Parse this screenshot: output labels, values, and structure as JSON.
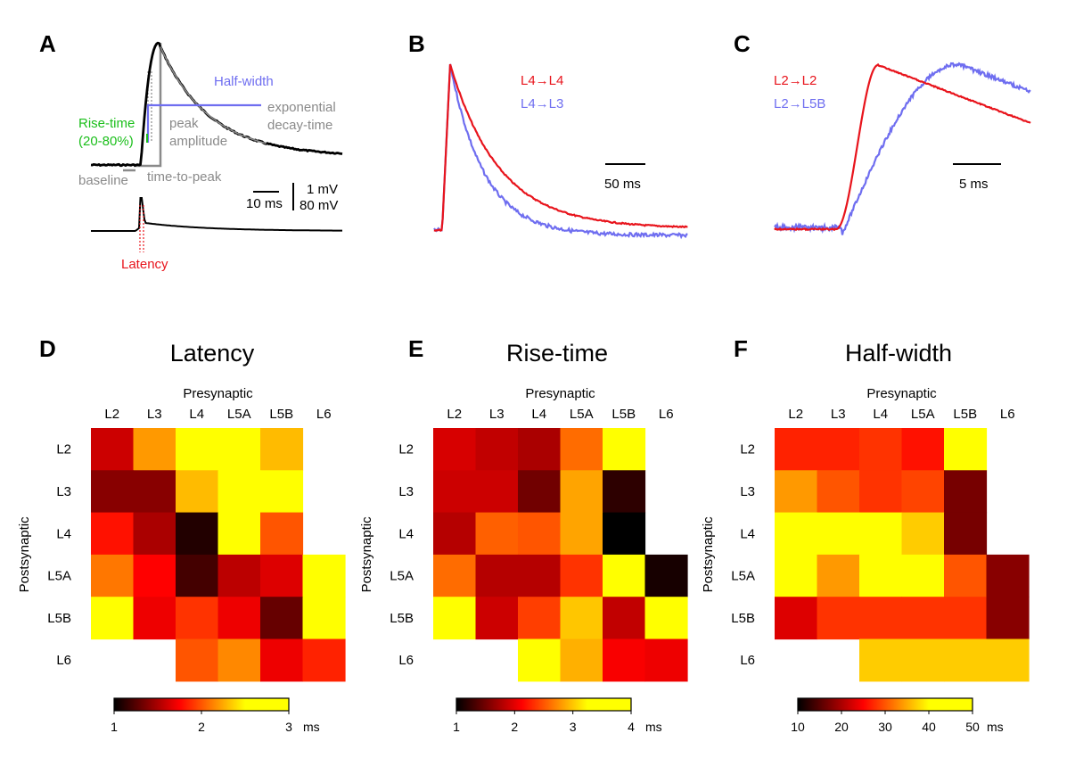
{
  "panels": {
    "A": {
      "label": "A",
      "annotations": {
        "half_width": "Half-width",
        "rise_time_line1": "Rise-time",
        "rise_time_line2": "(20-80%)",
        "peak_line1": "peak",
        "peak_line2": "amplitude",
        "decay_line1": "exponential",
        "decay_line2": "decay-time",
        "baseline": "baseline",
        "time_to_peak": "time-to-peak",
        "latency": "Latency"
      },
      "scale": {
        "time": "10 ms",
        "v1": "1 mV",
        "v2": "80 mV"
      }
    },
    "B": {
      "label": "B",
      "scale": "50 ms"
    },
    "C": {
      "label": "C",
      "scale": "5 ms"
    },
    "D": {
      "label": "D"
    },
    "E": {
      "label": "E"
    },
    "F": {
      "label": "F"
    }
  },
  "colors": {
    "red": "#e8141c",
    "blue": "#6f6ef0",
    "green": "#1bbf1b",
    "gray": "#8a8a8a"
  },
  "chart_data": [
    {
      "type": "line",
      "panel": "B",
      "series": [
        {
          "name": "L4→L4",
          "color": "#e8141c"
        },
        {
          "name": "L4→L3",
          "color": "#6f6ef0"
        }
      ]
    },
    {
      "type": "line",
      "panel": "C",
      "series": [
        {
          "name": "L2→L2",
          "color": "#e8141c"
        },
        {
          "name": "L2→L5B",
          "color": "#6f6ef0"
        }
      ]
    },
    {
      "type": "heatmap",
      "panel": "D",
      "title": "Latency",
      "xlabel": "Presynaptic",
      "ylabel": "Postsynaptic",
      "x": [
        "L2",
        "L3",
        "L4",
        "L5A",
        "L5B",
        "L6"
      ],
      "y": [
        "L2",
        "L3",
        "L4",
        "L5A",
        "L5B",
        "L6"
      ],
      "unit": "ms",
      "range": [
        1,
        3
      ],
      "colorbar_ticks": [
        "1",
        "2",
        "3"
      ],
      "values": [
        [
          1.6,
          2.2,
          2.7,
          3.0,
          2.3,
          null
        ],
        [
          1.4,
          1.4,
          2.3,
          3.0,
          2.8,
          null
        ],
        [
          1.8,
          1.5,
          1.1,
          2.6,
          2.0,
          null
        ],
        [
          2.1,
          1.75,
          1.2,
          1.55,
          1.65,
          3.0
        ],
        [
          2.9,
          1.7,
          1.9,
          1.7,
          1.3,
          3.0
        ],
        [
          null,
          null,
          2.0,
          2.15,
          1.7,
          1.85
        ]
      ]
    },
    {
      "type": "heatmap",
      "panel": "E",
      "title": "Rise-time",
      "xlabel": "Presynaptic",
      "ylabel": "Postsynaptic",
      "x": [
        "L2",
        "L3",
        "L4",
        "L5A",
        "L5B",
        "L6"
      ],
      "y": [
        "L2",
        "L3",
        "L4",
        "L5A",
        "L5B",
        "L6"
      ],
      "unit": "ms",
      "range": [
        1,
        4
      ],
      "colorbar_ticks": [
        "1",
        "2",
        "3",
        "4"
      ],
      "values": [
        [
          1.95,
          1.85,
          1.75,
          2.6,
          4.0,
          null
        ],
        [
          1.9,
          1.9,
          1.5,
          2.85,
          1.2,
          null
        ],
        [
          1.8,
          2.55,
          2.5,
          2.85,
          1.0,
          null
        ],
        [
          2.6,
          1.8,
          1.8,
          2.35,
          4.0,
          1.1
        ],
        [
          4.0,
          1.9,
          2.4,
          3.0,
          1.85,
          3.9
        ],
        [
          null,
          null,
          3.4,
          2.9,
          2.1,
          2.05
        ]
      ]
    },
    {
      "type": "heatmap",
      "panel": "F",
      "title": "Half-width",
      "xlabel": "Presynaptic",
      "ylabel": "Postsynaptic",
      "x": [
        "L2",
        "L3",
        "L4",
        "L5A",
        "L5B",
        "L6"
      ],
      "y": [
        "L2",
        "L3",
        "L4",
        "L5A",
        "L5B",
        "L6"
      ],
      "unit": "ms",
      "range": [
        10,
        50
      ],
      "colorbar_ticks": [
        "10",
        "20",
        "30",
        "40",
        "50"
      ],
      "values": [
        [
          27,
          27,
          28,
          26,
          50,
          null
        ],
        [
          34,
          30,
          28,
          29,
          17,
          null
        ],
        [
          50,
          50,
          50,
          37,
          17,
          null
        ],
        [
          49,
          34,
          45,
          48,
          30,
          18
        ],
        [
          23,
          28,
          28,
          28,
          28,
          18
        ],
        [
          null,
          null,
          37,
          37,
          37,
          37
        ]
      ]
    }
  ]
}
